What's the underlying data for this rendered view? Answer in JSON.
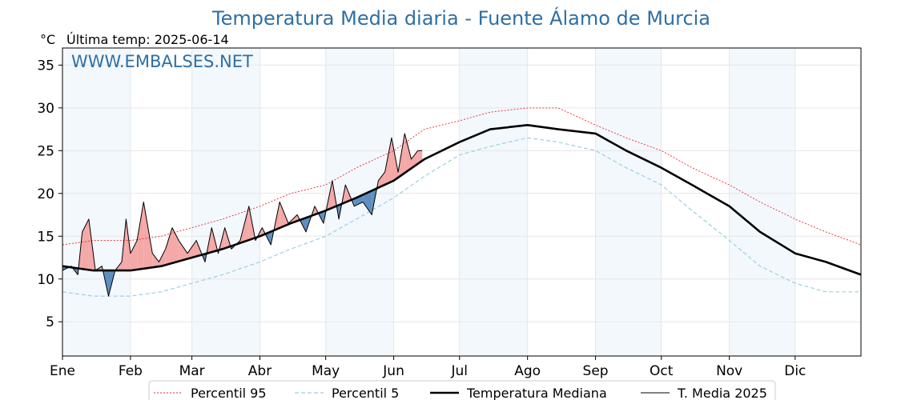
{
  "chart_data": {
    "type": "line",
    "title": "Temperatura Media diaria - Fuente Álamo de Murcia",
    "unit": "°C",
    "last_temp_label": "Última temp: 2025-06-14",
    "watermark": "WWW.EMBALSES.NET",
    "ylim": [
      1,
      37
    ],
    "y_ticks": [
      5,
      10,
      15,
      20,
      25,
      30,
      35
    ],
    "xlim": [
      1,
      365
    ],
    "months": [
      {
        "label": "Ene",
        "day": 1
      },
      {
        "label": "Feb",
        "day": 32
      },
      {
        "label": "Mar",
        "day": 60
      },
      {
        "label": "Abr",
        "day": 91
      },
      {
        "label": "May",
        "day": 121
      },
      {
        "label": "Jun",
        "day": 152
      },
      {
        "label": "Jul",
        "day": 182
      },
      {
        "label": "Ago",
        "day": 213
      },
      {
        "label": "Sep",
        "day": 244
      },
      {
        "label": "Oct",
        "day": 274
      },
      {
        "label": "Nov",
        "day": 305
      },
      {
        "label": "Dic",
        "day": 335
      }
    ],
    "shaded_month_pairs": [
      [
        1,
        32
      ],
      [
        60,
        91
      ],
      [
        121,
        152
      ],
      [
        182,
        213
      ],
      [
        244,
        274
      ],
      [
        305,
        335
      ]
    ],
    "grid": true,
    "legend_position": "bottom-center",
    "series": [
      {
        "name": "Percentil 95",
        "style": "dotted",
        "color": "#e8282b",
        "x": [
          1,
          15,
          32,
          46,
          60,
          74,
          91,
          105,
          121,
          135,
          152,
          166,
          182,
          196,
          213,
          227,
          244,
          258,
          274,
          288,
          305,
          319,
          335,
          349,
          365
        ],
        "values": [
          14,
          14.5,
          14.5,
          15,
          16,
          17,
          18.5,
          20,
          21,
          23,
          25,
          27.5,
          28.5,
          29.5,
          30,
          30,
          28,
          26.5,
          25,
          23,
          21,
          19,
          17,
          15.5,
          14
        ]
      },
      {
        "name": "Percentil 5",
        "style": "dashed",
        "color": "#9ecfe0",
        "x": [
          1,
          15,
          32,
          46,
          60,
          74,
          91,
          105,
          121,
          135,
          152,
          166,
          182,
          196,
          213,
          227,
          244,
          258,
          274,
          288,
          305,
          319,
          335,
          349,
          365
        ],
        "values": [
          8.5,
          8,
          8,
          8.5,
          9.5,
          10.5,
          12,
          13.5,
          15,
          17,
          19.5,
          22,
          24.5,
          25.5,
          26.5,
          26,
          25,
          23,
          21,
          18,
          14.5,
          11.5,
          9.5,
          8.5,
          8.5
        ]
      },
      {
        "name": "Temperatura Mediana",
        "style": "solid-thick",
        "color": "#000000",
        "x": [
          1,
          15,
          32,
          46,
          60,
          74,
          91,
          105,
          121,
          135,
          152,
          166,
          182,
          196,
          213,
          227,
          244,
          258,
          274,
          288,
          305,
          319,
          335,
          349,
          365
        ],
        "values": [
          11.5,
          11,
          11,
          11.5,
          12.5,
          13.5,
          15,
          16.5,
          18,
          19.5,
          21.5,
          24,
          26,
          27.5,
          28,
          27.5,
          27,
          25,
          23,
          21,
          18.5,
          15.5,
          13,
          12,
          10.5
        ]
      },
      {
        "name": "T. Media 2025",
        "style": "solid-thin",
        "color": "#000000",
        "x": [
          1,
          5,
          8,
          10,
          13,
          16,
          19,
          22,
          25,
          28,
          30,
          32,
          35,
          38,
          42,
          45,
          48,
          51,
          54,
          58,
          62,
          66,
          69,
          72,
          75,
          78,
          82,
          86,
          89,
          92,
          96,
          100,
          104,
          108,
          112,
          116,
          120,
          124,
          127,
          130,
          134,
          138,
          142,
          145,
          148,
          151,
          154,
          157,
          160,
          163,
          165
        ],
        "values": [
          11,
          11.5,
          10.5,
          15.5,
          17,
          11,
          11.5,
          8,
          11,
          12,
          17,
          13,
          14.5,
          19,
          13,
          12,
          13.5,
          16,
          14.5,
          13,
          14.5,
          12,
          16,
          13,
          16,
          13.5,
          14.5,
          18.5,
          14.5,
          16,
          14,
          19,
          16.5,
          17.5,
          15.5,
          18.5,
          16.5,
          21.5,
          17,
          21,
          18.5,
          19,
          17.5,
          21.5,
          22.5,
          26.5,
          22.5,
          27,
          24,
          25,
          25
        ]
      }
    ],
    "legend": [
      {
        "label": "Percentil 95",
        "style": "dotted",
        "color": "#e8282b"
      },
      {
        "label": "Percentil 5",
        "style": "dashed",
        "color": "#9ecfe0"
      },
      {
        "label": "Temperatura Mediana",
        "style": "solid-thick",
        "color": "#000000"
      },
      {
        "label": "T. Media 2025",
        "style": "solid-thin",
        "color": "#000000"
      }
    ],
    "colors": {
      "above_median_fill": "#f4a8a8",
      "below_median_fill": "#5f8fbf",
      "month_shade": "#f3f8fd"
    }
  }
}
